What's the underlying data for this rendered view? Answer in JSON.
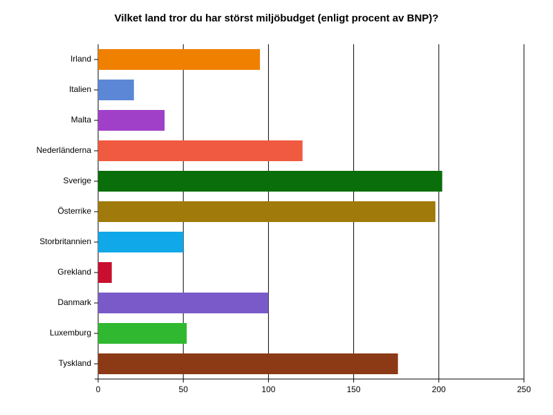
{
  "chart_data": {
    "type": "bar",
    "orientation": "horizontal",
    "title": "Vilket land tror du har störst miljöbudget (enligt procent av BNP)?",
    "categories": [
      "Irland",
      "Italien",
      "Malta",
      "Nederländerna",
      "Sverige",
      "Österrike",
      "Storbritannien",
      "Grekland",
      "Danmark",
      "Luxemburg",
      "Tyskland"
    ],
    "values": [
      95,
      21,
      39,
      120,
      202,
      198,
      50,
      8,
      100,
      52,
      176
    ],
    "colors": [
      "#f08000",
      "#5b87d6",
      "#a040c8",
      "#f05a40",
      "#0a6e0a",
      "#a07a0a",
      "#10a8e8",
      "#c8102e",
      "#7a5ac8",
      "#30b830",
      "#8b3a15"
    ],
    "xlim": [
      0,
      250
    ],
    "xticks": [
      0,
      50,
      100,
      150,
      200,
      250
    ],
    "grid": true
  }
}
